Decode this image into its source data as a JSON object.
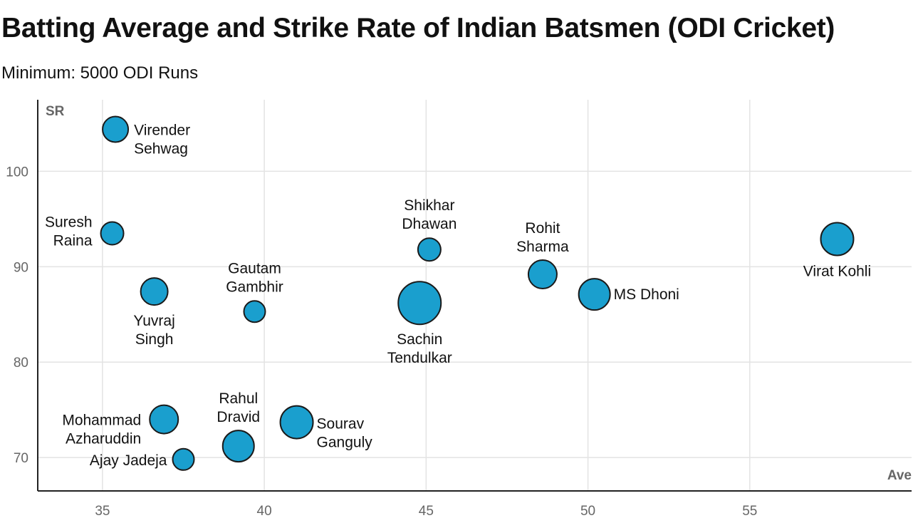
{
  "title": "Batting Average and Strike Rate of Indian Batsmen (ODI Cricket)",
  "subtitle": "Minimum: 5000 ODI Runs",
  "chart_data": {
    "type": "scatter",
    "xlabel": "Ave",
    "ylabel": "SR",
    "xlim": [
      33,
      60
    ],
    "ylim": [
      66.5,
      107.5
    ],
    "xticks": [
      35,
      40,
      45,
      50,
      55
    ],
    "yticks": [
      70,
      80,
      90,
      100
    ],
    "grid": true,
    "colors": {
      "bubble": "#1a9fce",
      "outline": "#1a1a1a",
      "grid": "#e3e3e3"
    },
    "points": [
      {
        "name": "Virender Sehwag",
        "lines": [
          "Virender",
          "Sehwag"
        ],
        "x": 35.4,
        "y": 104.4,
        "size": 18
      },
      {
        "name": "Suresh Raina",
        "lines": [
          "Suresh",
          "Raina"
        ],
        "x": 35.3,
        "y": 93.5,
        "size": 16
      },
      {
        "name": "Yuvraj Singh",
        "lines": [
          "Yuvraj",
          "Singh"
        ],
        "x": 36.6,
        "y": 87.4,
        "size": 19
      },
      {
        "name": "Gautam Gambhir",
        "lines": [
          "Gautam",
          "Gambhir"
        ],
        "x": 39.7,
        "y": 85.3,
        "size": 15
      },
      {
        "name": "Shikhar Dhawan",
        "lines": [
          "Shikhar",
          "Dhawan"
        ],
        "x": 45.1,
        "y": 91.8,
        "size": 16
      },
      {
        "name": "Sachin Tendulkar",
        "lines": [
          "Sachin",
          "Tendulkar"
        ],
        "x": 44.8,
        "y": 86.2,
        "size": 30
      },
      {
        "name": "Rohit Sharma",
        "lines": [
          "Rohit",
          "Sharma"
        ],
        "x": 48.6,
        "y": 89.2,
        "size": 20
      },
      {
        "name": "MS Dhoni",
        "lines": [
          "MS Dhoni"
        ],
        "x": 50.2,
        "y": 87.1,
        "size": 22
      },
      {
        "name": "Virat Kohli",
        "lines": [
          "Virat Kohli"
        ],
        "x": 57.7,
        "y": 92.9,
        "size": 23
      },
      {
        "name": "Mohammad Azharuddin",
        "lines": [
          "Mohammad",
          "Azharuddin"
        ],
        "x": 36.9,
        "y": 74.0,
        "size": 20
      },
      {
        "name": "Ajay Jadeja",
        "lines": [
          "Ajay Jadeja"
        ],
        "x": 37.5,
        "y": 69.8,
        "size": 15
      },
      {
        "name": "Rahul Dravid",
        "lines": [
          "Rahul",
          "Dravid"
        ],
        "x": 39.2,
        "y": 71.2,
        "size": 22
      },
      {
        "name": "Sourav Ganguly",
        "lines": [
          "Sourav",
          "Ganguly"
        ],
        "x": 41.0,
        "y": 73.7,
        "size": 23
      }
    ]
  }
}
